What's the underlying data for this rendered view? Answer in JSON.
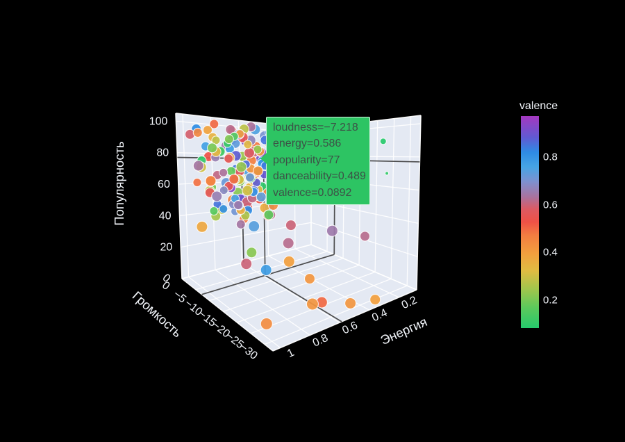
{
  "page": {
    "background": "#000000"
  },
  "tooltip": {
    "lines": [
      "loudness=−7.218",
      "energy=0.586",
      "popularity=77",
      "danceability=0.489",
      "valence=0.0892"
    ],
    "bg": "#2dc463",
    "border": "#d9f2e3",
    "text_color": "#3d5147"
  },
  "chart_data": {
    "type": "scatter3d",
    "title": "",
    "legend_position": "none",
    "grid": true,
    "scene_bg": "#e4e9f3",
    "grid_color": "rgba(255,255,255,0.9)",
    "edge_color": "rgba(255,255,255,0.95)",
    "spike_color": "#454545",
    "axes": {
      "x": {
        "title": "Энергия",
        "tick_labels": [
          "1",
          "0.8",
          "0.6",
          "0.4",
          "0.2"
        ],
        "tick_values": [
          1,
          0.8,
          0.6,
          0.4,
          0.2
        ],
        "range": [
          1.05,
          0.08
        ]
      },
      "y": {
        "title": "Громкость",
        "tick_labels": [
          "0",
          "−5",
          "−10",
          "−15",
          "−20",
          "−25",
          "−30"
        ],
        "tick_values": [
          0,
          -5,
          -10,
          -15,
          -20,
          -25,
          -30
        ],
        "range": [
          0,
          -33
        ]
      },
      "z": {
        "title": "Популярность",
        "tick_labels": [
          "0",
          "20",
          "40",
          "60",
          "80",
          "100"
        ],
        "tick_values": [
          0,
          20,
          40,
          60,
          80,
          100
        ],
        "range": [
          0,
          105
        ]
      }
    },
    "colorbar": {
      "title": "valence",
      "tick_labels": [
        "0.8",
        "0.6",
        "0.4",
        "0.2"
      ],
      "tick_values": [
        0.8,
        0.6,
        0.4,
        0.2
      ],
      "range": [
        0.083,
        0.973
      ],
      "stops": [
        [
          0,
          "#26c96c"
        ],
        [
          0.1,
          "#5ec95b"
        ],
        [
          0.18,
          "#9ec64d"
        ],
        [
          0.27,
          "#e0bc42"
        ],
        [
          0.35,
          "#f2a03e"
        ],
        [
          0.44,
          "#f37c41"
        ],
        [
          0.5,
          "#ef5146"
        ],
        [
          0.56,
          "#dd5a62"
        ],
        [
          0.62,
          "#a8739f"
        ],
        [
          0.69,
          "#7e90cf"
        ],
        [
          0.76,
          "#46a4e4"
        ],
        [
          0.83,
          "#2e8be4"
        ],
        [
          0.9,
          "#6159d2"
        ],
        [
          1,
          "#a438c0"
        ]
      ]
    },
    "hover_point": {
      "loudness": -7.218,
      "energy": 0.586,
      "popularity": 77,
      "danceability": 0.489,
      "valence": 0.0892
    },
    "points_schema": [
      "loudness",
      "energy",
      "popularity",
      "valence",
      "marker_radius_px"
    ],
    "points": [
      [
        -2.1,
        0.95,
        98,
        0.82,
        7
      ],
      [
        -4.3,
        0.88,
        95,
        0.35,
        6.5
      ],
      [
        -6.8,
        0.72,
        97,
        0.55,
        7.5
      ],
      [
        -3.5,
        0.63,
        92,
        0.91,
        7
      ],
      [
        -8.2,
        0.81,
        99,
        0.15,
        6
      ],
      [
        -5.1,
        0.77,
        101,
        0.62,
        7
      ],
      [
        -9.4,
        0.59,
        94,
        0.44,
        6.5
      ],
      [
        -2.8,
        0.69,
        90,
        0.73,
        7.5
      ],
      [
        -7.3,
        0.92,
        96,
        0.28,
        6
      ],
      [
        -11.2,
        0.66,
        98,
        0.85,
        6.5
      ],
      [
        -3.2,
        0.55,
        88,
        0.48,
        7
      ],
      [
        -6.1,
        0.97,
        91,
        0.77,
        6.5
      ],
      [
        -4.8,
        0.84,
        86,
        0.12,
        7
      ],
      [
        -9.8,
        0.74,
        89,
        0.58,
        7.5
      ],
      [
        -2.4,
        0.79,
        84,
        0.33,
        6
      ],
      [
        -7.7,
        0.61,
        87,
        0.95,
        7
      ],
      [
        -5.5,
        0.89,
        83,
        0.66,
        6.5
      ],
      [
        -10.6,
        0.56,
        85,
        0.41,
        7
      ],
      [
        -3.9,
        0.71,
        82,
        0.88,
        7.5
      ],
      [
        -8.8,
        0.66,
        90,
        0.23,
        6
      ],
      [
        -2.2,
        0.87,
        80,
        0.53,
        7
      ],
      [
        -6.5,
        0.58,
        78,
        0.79,
        6.5
      ],
      [
        -4.1,
        0.76,
        81,
        0.36,
        7.5
      ],
      [
        -9.1,
        0.91,
        77,
        0.63,
        6
      ],
      [
        -3.3,
        0.52,
        79,
        0.92,
        7
      ],
      [
        -7.9,
        0.83,
        76,
        0.18,
        6.5
      ],
      [
        -5.8,
        0.64,
        80,
        0.47,
        7
      ],
      [
        -11.8,
        0.78,
        75,
        0.71,
        6.5
      ],
      [
        -2.9,
        0.94,
        74,
        0.3,
        7.5
      ],
      [
        -8.4,
        0.6,
        78,
        0.84,
        6
      ],
      [
        -4.6,
        0.7,
        72,
        0.57,
        7
      ],
      [
        -10.2,
        0.85,
        73,
        0.25,
        6.5
      ],
      [
        -3.1,
        0.62,
        71,
        0.75,
        7
      ],
      [
        -7.1,
        0.96,
        70,
        0.45,
        7.5
      ],
      [
        -5.3,
        0.54,
        69,
        0.89,
        6
      ],
      [
        -9.6,
        0.73,
        72,
        0.14,
        7
      ],
      [
        -2.6,
        0.82,
        68,
        0.61,
        6.5
      ],
      [
        -6.9,
        0.65,
        67,
        0.38,
        7
      ],
      [
        -12.4,
        0.77,
        66,
        0.8,
        6.5
      ],
      [
        -4.4,
        0.58,
        70,
        0.51,
        7.5
      ],
      [
        -8.6,
        0.9,
        65,
        0.68,
        6
      ],
      [
        -3.7,
        0.68,
        64,
        0.21,
        7
      ],
      [
        -6.3,
        0.8,
        63,
        0.93,
        6.5
      ],
      [
        -10.9,
        0.57,
        66,
        0.4,
        7
      ],
      [
        -2.3,
        0.75,
        62,
        0.72,
        7.5
      ],
      [
        -7.5,
        0.63,
        61,
        0.32,
        6
      ],
      [
        -5.2,
        0.93,
        60,
        0.56,
        7
      ],
      [
        -9.3,
        0.7,
        63,
        0.87,
        6.5
      ],
      [
        -4,
        0.53,
        59,
        0.1,
        7
      ],
      [
        -11.5,
        0.86,
        58,
        0.65,
        6.5
      ],
      [
        -3,
        0.6,
        57,
        0.43,
        7.5
      ],
      [
        -6.6,
        0.78,
        56,
        0.76,
        6
      ],
      [
        -2.7,
        0.88,
        58,
        0.27,
        7
      ],
      [
        -8,
        0.55,
        55,
        0.59,
        6.5
      ],
      [
        -5.6,
        0.72,
        54,
        0.9,
        7
      ],
      [
        -10.4,
        0.82,
        53,
        0.37,
        6.5
      ],
      [
        -4.2,
        0.66,
        52,
        0.7,
        7.5
      ],
      [
        -7.4,
        0.95,
        51,
        0.16,
        6
      ],
      [
        -3.4,
        0.57,
        53,
        0.52,
        7
      ],
      [
        -9,
        0.74,
        50,
        0.82,
        6.5
      ],
      [
        -5.9,
        0.86,
        49,
        0.29,
        7
      ],
      [
        -12,
        0.64,
        48,
        0.62,
        6.5
      ],
      [
        -2.5,
        0.71,
        50,
        0.46,
        7.5
      ],
      [
        -6.2,
        0.52,
        96,
        0.74,
        6
      ],
      [
        -8.9,
        0.98,
        93,
        0.2,
        7
      ],
      [
        -4.7,
        0.75,
        100,
        0.54,
        6.5
      ],
      [
        -10.1,
        0.6,
        102,
        0.83,
        7
      ],
      [
        -3.6,
        0.9,
        99,
        0.39,
        6.5
      ],
      [
        -7,
        0.67,
        95,
        0.67,
        7.5
      ],
      [
        -5.4,
        0.8,
        92,
        0.11,
        6
      ],
      [
        -9.9,
        0.53,
        89,
        0.49,
        7
      ],
      [
        -2.85,
        0.73,
        86,
        0.78,
        6.5
      ],
      [
        -6.75,
        0.91,
        88,
        0.34,
        7
      ],
      [
        -4.35,
        0.59,
        85,
        0.6,
        7.5
      ],
      [
        -11,
        0.79,
        83,
        0.86,
        6
      ],
      [
        -3.25,
        0.65,
        81,
        0.24,
        7
      ],
      [
        -7.6,
        0.84,
        84,
        0.57,
        6.5
      ],
      [
        -5.7,
        0.56,
        79,
        0.81,
        7
      ],
      [
        -8.3,
        0.7,
        77,
        0.42,
        6.5
      ],
      [
        -2.95,
        0.96,
        75,
        0.64,
        7.5
      ],
      [
        -6.4,
        0.61,
        73,
        0.19,
        6
      ],
      [
        -10.7,
        0.87,
        74,
        0.5,
        7
      ],
      [
        -3.8,
        0.54,
        71,
        0.77,
        6.5
      ],
      [
        -7.2,
        0.76,
        69,
        0.31,
        7
      ],
      [
        -5,
        0.92,
        67,
        0.58,
        7.5
      ],
      [
        -9.2,
        0.68,
        68,
        0.88,
        6
      ],
      [
        -2.2,
        0.58,
        65,
        0.26,
        7
      ],
      [
        -6,
        0.81,
        64,
        0.55,
        6.5
      ],
      [
        -12.6,
        0.72,
        62,
        0.73,
        7
      ],
      [
        -4.5,
        0.63,
        60,
        0.35,
        6.5
      ],
      [
        -8.1,
        0.94,
        61,
        0.66,
        7.5
      ],
      [
        -3.15,
        0.77,
        59,
        0.13,
        6
      ],
      [
        -6.85,
        0.55,
        57,
        0.47,
        7
      ],
      [
        -10.3,
        0.83,
        56,
        0.79,
        6.5
      ],
      [
        -2.45,
        0.67,
        55,
        0.22,
        7
      ],
      [
        -7.8,
        0.72,
        54,
        0.6,
        7.5
      ],
      [
        -5.25,
        0.88,
        52,
        0.85,
        6
      ],
      [
        -9.5,
        0.57,
        51,
        0.44,
        7
      ],
      [
        -4.05,
        0.74,
        49,
        0.69,
        6.5
      ],
      [
        -11.7,
        0.65,
        48,
        0.17,
        7
      ],
      [
        -3.45,
        0.85,
        103,
        0.5,
        6.5
      ],
      [
        -5.85,
        0.69,
        102,
        0.28,
        7
      ],
      [
        -2.15,
        0.53,
        100,
        0.75,
        7.5
      ],
      [
        -8.7,
        0.78,
        101,
        0.4,
        6
      ],
      [
        -4.9,
        0.62,
        103,
        0.63,
        7
      ],
      [
        -10.8,
        0.9,
        100,
        0.21,
        6.5
      ],
      [
        -6.55,
        0.74,
        99,
        0.87,
        7
      ],
      [
        -3.55,
        0.97,
        97,
        0.45,
        6.5
      ],
      [
        -7.45,
        0.58,
        98,
        0.7,
        7.5
      ],
      [
        -12.2,
        0.8,
        97,
        0.33,
        6
      ],
      [
        -5.15,
        0.66,
        47,
        0.56,
        7
      ],
      [
        -2.65,
        0.8,
        46,
        0.83,
        6.5
      ],
      [
        -7.05,
        0.93,
        47,
        0.25,
        7
      ],
      [
        -9.7,
        0.61,
        45,
        0.52,
        7.5
      ],
      [
        -4.15,
        0.73,
        44,
        0.71,
        6
      ],
      [
        -6.15,
        0.56,
        46,
        0.37,
        7
      ],
      [
        -11.3,
        0.84,
        45,
        0.64,
        6.5
      ],
      [
        -3.05,
        0.64,
        44,
        0.15,
        7
      ],
      [
        -8.5,
        0.76,
        44,
        0.48,
        6.5
      ],
      [
        -5.45,
        0.51,
        45,
        0.8,
        7.5
      ],
      [
        -1.8,
        0.99,
        94,
        0.59,
        7
      ],
      [
        -13.2,
        0.62,
        90,
        0.36,
        6.5
      ],
      [
        -1.6,
        0.73,
        87,
        0.65,
        7
      ],
      [
        -13.8,
        0.88,
        85,
        0.23,
        7.5
      ],
      [
        -1.9,
        0.57,
        82,
        0.78,
        6
      ],
      [
        -13.1,
        0.75,
        80,
        0.43,
        7
      ],
      [
        -1.7,
        0.91,
        77,
        0.1,
        6.5
      ],
      [
        -13.5,
        0.59,
        74,
        0.55,
        7
      ],
      [
        -1.95,
        0.67,
        71,
        0.85,
        6.5
      ],
      [
        -12.8,
        0.82,
        68,
        0.3,
        7.5
      ],
      [
        -4.25,
        1.0,
        66,
        0.49,
        6
      ],
      [
        -6.95,
        0.5,
        63,
        0.72,
        7
      ],
      [
        -2.55,
        0.86,
        60,
        0.2,
        6.5
      ],
      [
        -9.15,
        0.71,
        58,
        0.61,
        7
      ],
      [
        -5.65,
        0.6,
        55,
        0.34,
        7.5
      ],
      [
        -7.85,
        0.89,
        52,
        0.81,
        6
      ],
      [
        -3.65,
        0.54,
        50,
        0.53,
        7
      ],
      [
        -10.5,
        0.79,
        49,
        0.26,
        6.5
      ],
      [
        -2.35,
        0.7,
        92,
        0.9,
        7
      ],
      [
        -8.15,
        0.63,
        88,
        0.41,
        6.5
      ],
      [
        -11.5,
        0.81,
        19,
        0.6,
        8
      ],
      [
        -4,
        0.97,
        37,
        0.38,
        8
      ],
      [
        -10,
        0.72,
        40,
        0.74,
        8
      ],
      [
        -10,
        0.74,
        23,
        0.22,
        7.5
      ],
      [
        -12.5,
        0.69,
        13,
        0.78,
        8
      ],
      [
        -26.5,
        0.97,
        5,
        0.44,
        8.5
      ],
      [
        -24.8,
        0.62,
        3,
        0.42,
        8.5
      ],
      [
        -26,
        0.58,
        4,
        0.5,
        8
      ],
      [
        -29.7,
        0.46,
        3,
        0.42,
        8
      ],
      [
        -32,
        0.34,
        3,
        0.4,
        7.5
      ],
      [
        -13.9,
        0.56,
        29,
        0.62,
        8
      ],
      [
        -12,
        0.5,
        38,
        0.6,
        7.5
      ],
      [
        -18,
        0.34,
        35,
        0.65,
        8
      ],
      [
        -22,
        0.2,
        30,
        0.62,
        7
      ],
      [
        -16,
        0.6,
        20,
        0.4,
        8
      ],
      [
        -20.5,
        0.55,
        12,
        0.42,
        7.5
      ],
      [
        -24.8,
        0.147,
        92,
        0.085,
        4.5
      ],
      [
        -25.7,
        0.138,
        71,
        0.1,
        2.5
      ]
    ]
  }
}
